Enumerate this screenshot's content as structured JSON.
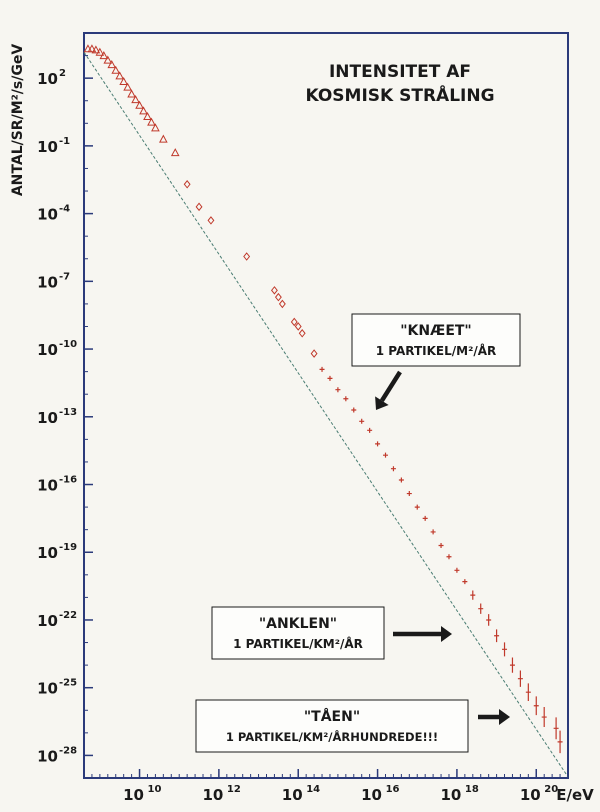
{
  "chart_data": {
    "type": "scatter",
    "title": "INTENSITET AF\nKOSMISK STRÅLING",
    "ylabel": "ANTAL/SR/M²/s/GeV",
    "xlabel": "E/eV",
    "x_scale": "log",
    "y_scale": "log",
    "xlim_log10": [
      8.6,
      20.8
    ],
    "ylim_log10": [
      -29,
      4
    ],
    "x_ticks_log10": [
      10,
      12,
      14,
      16,
      18,
      20
    ],
    "x_tick_labels": [
      "10",
      "10",
      "10",
      "10",
      "10",
      "10"
    ],
    "x_tick_exponents": [
      "10",
      "12",
      "14",
      "16",
      "18",
      "20"
    ],
    "y_ticks_log10": [
      2,
      -1,
      -4,
      -7,
      -10,
      -13,
      -16,
      -19,
      -22,
      -25,
      -28
    ],
    "y_tick_labels": [
      "10",
      "10",
      "10",
      "10",
      "10",
      "10",
      "10",
      "10",
      "10",
      "10",
      "10"
    ],
    "y_tick_exponents": [
      "2",
      "-1",
      "-4",
      "-7",
      "-10",
      "-13",
      "-16",
      "-19",
      "-22",
      "-25",
      "-28"
    ],
    "grid": false,
    "series": [
      {
        "marker": "triangle",
        "x_log10": [
          8.7,
          8.8,
          8.9,
          9.0,
          9.1,
          9.2,
          9.3,
          9.4,
          9.5,
          9.6,
          9.7,
          9.8,
          9.9,
          10.0,
          10.1,
          10.2,
          10.3,
          10.4,
          10.6,
          10.9
        ],
        "y_log10": [
          3.3,
          3.3,
          3.25,
          3.15,
          3.0,
          2.8,
          2.6,
          2.35,
          2.1,
          1.85,
          1.6,
          1.3,
          1.05,
          0.8,
          0.55,
          0.3,
          0.05,
          -0.2,
          -0.7,
          -1.3
        ]
      },
      {
        "marker": "diamond",
        "x_log10": [
          11.2,
          11.5,
          11.8,
          12.7,
          13.4,
          13.5,
          13.6,
          13.9,
          14.0,
          14.1,
          14.4
        ],
        "y_log10": [
          -2.7,
          -3.7,
          -4.3,
          -5.9,
          -7.4,
          -7.7,
          -8.0,
          -8.8,
          -9.0,
          -9.3,
          -10.2
        ]
      },
      {
        "marker": "cross",
        "x_log10": [
          14.6,
          14.8,
          15.0,
          15.2,
          15.4,
          15.6,
          15.8,
          16.0,
          16.2,
          16.4,
          16.6,
          16.8,
          17.0,
          17.2,
          17.4,
          17.6,
          17.8,
          18.0,
          18.2,
          18.4,
          18.6,
          18.8,
          19.0,
          19.2,
          19.4,
          19.6,
          19.8,
          20.0,
          20.2,
          20.5,
          20.6
        ],
        "y_log10": [
          -10.9,
          -11.3,
          -11.8,
          -12.2,
          -12.7,
          -13.2,
          -13.6,
          -14.2,
          -14.7,
          -15.3,
          -15.8,
          -16.4,
          -17.0,
          -17.5,
          -18.1,
          -18.7,
          -19.2,
          -19.8,
          -20.3,
          -20.9,
          -21.5,
          -22.0,
          -22.7,
          -23.3,
          -24.0,
          -24.6,
          -25.2,
          -25.8,
          -26.3,
          -26.8,
          -27.4
        ]
      }
    ],
    "reference_line_log10": {
      "x": [
        8.6,
        20.8
      ],
      "y": [
        3.15,
        -28.95
      ]
    },
    "annotations": [
      {
        "title": "\"KNÆET\"",
        "text": "1 PARTIKEL/M²/ÅR",
        "point_x_log10": 15.6,
        "point_y_log10": -13.2
      },
      {
        "title": "\"ANKLEN\"",
        "text": "1 PARTIKEL/KM²/ÅR",
        "point_x_log10": 18.6,
        "point_y_log10": -22.0
      },
      {
        "title": "\"TÅEN\"",
        "text": "1 PARTIKEL/KM²/ÅRHUNDREDE!!!",
        "point_x_log10": 20.0,
        "point_y_log10": -26.2
      }
    ],
    "colors": {
      "data": "#c0392b",
      "axis": "#2b3a7a",
      "line": "#4a7d73",
      "arrow": "#1a1a1a"
    }
  }
}
